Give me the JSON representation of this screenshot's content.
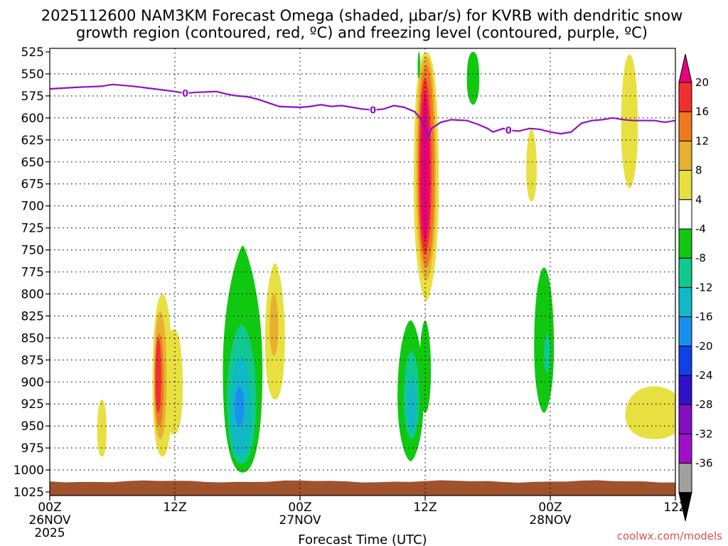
{
  "chart_data": {
    "type": "heatmap",
    "title_line1": "2025112600 NAM3KM Forecast Omega (shaded, μbar/s) for KVRB with dendritic snow",
    "title_line2": "growth region (contoured, red, ºC) and freezing level (contoured, purple, ºC)",
    "xlabel": "Forecast Time (UTC)",
    "ylabel": "",
    "credit": "coolwx.com/models",
    "x_unit": "forecast hour",
    "xlim": [
      0,
      60
    ],
    "ylim": [
      1025,
      525
    ],
    "y_ticks": [
      525,
      550,
      575,
      600,
      625,
      650,
      675,
      700,
      725,
      750,
      775,
      800,
      825,
      850,
      875,
      900,
      925,
      950,
      975,
      1000,
      1025
    ],
    "x_ticks": [
      {
        "hour": 0,
        "lines": [
          "00Z",
          "26NOV",
          "2025"
        ]
      },
      {
        "hour": 12,
        "lines": [
          "12Z"
        ]
      },
      {
        "hour": 24,
        "lines": [
          "00Z",
          "27NOV"
        ]
      },
      {
        "hour": 36,
        "lines": [
          "12Z"
        ]
      },
      {
        "hour": 48,
        "lines": [
          "00Z",
          "28NOV"
        ]
      },
      {
        "hour": 60,
        "lines": [
          "12Z"
        ]
      }
    ],
    "colorbar": {
      "labels": [
        "20",
        "16",
        "12",
        "8",
        "4",
        "-4",
        "-8",
        "-12",
        "-16",
        "-20",
        "-24",
        "-28",
        "-32",
        "-36"
      ],
      "colors": [
        "#e8007a",
        "#f03030",
        "#f07820",
        "#e8b030",
        "#e8e040",
        "#ffffff",
        "#10c810",
        "#10c890",
        "#10b8c8",
        "#1890f0",
        "#1040e8",
        "#3010c8",
        "#8010c0",
        "#a010c8",
        "#a0a0a0",
        "#000000"
      ]
    },
    "freezing_level": {
      "label": "0",
      "color": "#9010c8",
      "points": [
        [
          0,
          567
        ],
        [
          3,
          565
        ],
        [
          5,
          564
        ],
        [
          6,
          562
        ],
        [
          8,
          564
        ],
        [
          10,
          567
        ],
        [
          12,
          570
        ],
        [
          13,
          572
        ],
        [
          14,
          571
        ],
        [
          16,
          570
        ],
        [
          17,
          573
        ],
        [
          18,
          575
        ],
        [
          19,
          576
        ],
        [
          20,
          579
        ],
        [
          21,
          583
        ],
        [
          22,
          587
        ],
        [
          24,
          588
        ],
        [
          25,
          587
        ],
        [
          26,
          585
        ],
        [
          27,
          587
        ],
        [
          28,
          586
        ],
        [
          29,
          588
        ],
        [
          30,
          590
        ],
        [
          31,
          591
        ],
        [
          32,
          590
        ],
        [
          33,
          586
        ],
        [
          34,
          588
        ],
        [
          35,
          593
        ],
        [
          35.5,
          600
        ],
        [
          36,
          612
        ],
        [
          36.3,
          622
        ],
        [
          36.6,
          612
        ],
        [
          37.5,
          605
        ],
        [
          38.5,
          602
        ],
        [
          40,
          603
        ],
        [
          41,
          607
        ],
        [
          42,
          612
        ],
        [
          42.5,
          616
        ],
        [
          43.5,
          612
        ],
        [
          44,
          614
        ],
        [
          45,
          615
        ],
        [
          46,
          612
        ],
        [
          47,
          613
        ],
        [
          48,
          616
        ],
        [
          49,
          618
        ],
        [
          50,
          616
        ],
        [
          51,
          606
        ],
        [
          52,
          603
        ],
        [
          53,
          602
        ],
        [
          54,
          600
        ],
        [
          55,
          602
        ],
        [
          56,
          603
        ],
        [
          58,
          603
        ],
        [
          59,
          605
        ],
        [
          60,
          603
        ]
      ],
      "label_hours": [
        13,
        31,
        44
      ]
    },
    "omega_features": [
      {
        "name": "pos-a-0",
        "value": 4,
        "hour": 5,
        "pmin": 920,
        "pmax": 985,
        "w": 0.45,
        "wtop": 0.55,
        "wbot": 0.55
      },
      {
        "name": "pos-b-0",
        "value": 4,
        "hour": 10.8,
        "pmin": 800,
        "pmax": 985,
        "w": 0.95,
        "wtop": 0.55,
        "wbot": 0.55
      },
      {
        "name": "pos-b-1",
        "value": 4,
        "hour": 11.9,
        "pmin": 840,
        "pmax": 960,
        "w": 0.85,
        "wtop": 0.6,
        "wbot": 0.55
      },
      {
        "name": "pos-b-2",
        "value": 8,
        "hour": 10.6,
        "pmin": 820,
        "pmax": 965,
        "w": 0.6,
        "wtop": 0.55,
        "wbot": 0.55
      },
      {
        "name": "pos-b-3",
        "value": 12,
        "hour": 10.5,
        "pmin": 845,
        "pmax": 950,
        "w": 0.42,
        "wtop": 0.55,
        "wbot": 0.55
      },
      {
        "name": "pos-b-4",
        "value": 16,
        "hour": 10.4,
        "pmin": 850,
        "pmax": 935,
        "w": 0.28,
        "wtop": 0.55,
        "wbot": 0.55
      },
      {
        "name": "neg-c-0",
        "value": -4,
        "hour": 18.5,
        "pmin": 745,
        "pmax": 1003,
        "w": 1.9,
        "wtop": 0.12,
        "wbot": 0.6
      },
      {
        "name": "neg-c-1",
        "value": -8,
        "hour": 18.4,
        "pmin": 835,
        "pmax": 993,
        "w": 1.4,
        "wtop": 0.35,
        "wbot": 0.55
      },
      {
        "name": "neg-c-2",
        "value": -12,
        "hour": 18.3,
        "pmin": 870,
        "pmax": 985,
        "w": 0.95,
        "wtop": 0.45,
        "wbot": 0.55
      },
      {
        "name": "neg-c-3",
        "value": -16,
        "hour": 18.2,
        "pmin": 905,
        "pmax": 950,
        "w": 0.45,
        "wtop": 0.5,
        "wbot": 0.5
      },
      {
        "name": "pos-d-0",
        "value": 4,
        "hour": 21.6,
        "pmin": 765,
        "pmax": 920,
        "w": 0.95,
        "wtop": 0.3,
        "wbot": 0.55
      },
      {
        "name": "pos-d-1",
        "value": 8,
        "hour": 21.5,
        "pmin": 800,
        "pmax": 870,
        "w": 0.42,
        "wtop": 0.5,
        "wbot": 0.5
      },
      {
        "name": "neg-e-0",
        "value": -4,
        "hour": 34.6,
        "pmin": 830,
        "pmax": 990,
        "w": 1.25,
        "wtop": 0.35,
        "wbot": 0.3
      },
      {
        "name": "neg-e-1",
        "value": -8,
        "hour": 34.7,
        "pmin": 865,
        "pmax": 965,
        "w": 0.75,
        "wtop": 0.45,
        "wbot": 0.45
      },
      {
        "name": "neg-e-2",
        "value": -12,
        "hour": 34.7,
        "pmin": 895,
        "pmax": 955,
        "w": 0.4,
        "wtop": 0.5,
        "wbot": 0.5
      },
      {
        "name": "neg-e-3",
        "value": -4,
        "hour": 36.0,
        "pmin": 830,
        "pmax": 935,
        "w": 0.55,
        "wtop": 0.4,
        "wbot": 0.5
      },
      {
        "name": "pos-f-0",
        "value": 4,
        "hour": 36.1,
        "pmin": 525,
        "pmax": 808,
        "w": 1.2,
        "wtop": 0.7,
        "wbot": 0.3
      },
      {
        "name": "pos-f-1",
        "value": 8,
        "hour": 36.1,
        "pmin": 530,
        "pmax": 785,
        "w": 0.95,
        "wtop": 0.65,
        "wbot": 0.4
      },
      {
        "name": "pos-f-2",
        "value": 12,
        "hour": 36.1,
        "pmin": 540,
        "pmax": 770,
        "w": 0.78,
        "wtop": 0.6,
        "wbot": 0.45
      },
      {
        "name": "pos-f-3",
        "value": 16,
        "hour": 36.0,
        "pmin": 555,
        "pmax": 755,
        "w": 0.6,
        "wtop": 0.5,
        "wbot": 0.5
      },
      {
        "name": "pos-f-4",
        "value": 20,
        "hour": 36.0,
        "pmin": 570,
        "pmax": 740,
        "w": 0.42,
        "wtop": 0.35,
        "wbot": 0.5
      },
      {
        "name": "neg-g-0",
        "value": -4,
        "hour": 35.4,
        "pmin": 525,
        "pmax": 555,
        "w": 0.12,
        "wtop": 0.6,
        "wbot": 0.6
      },
      {
        "name": "neg-h-0",
        "value": -4,
        "hour": 40.6,
        "pmin": 525,
        "pmax": 585,
        "w": 0.6,
        "wtop": 0.7,
        "wbot": 0.4
      },
      {
        "name": "pos-i-0",
        "value": 4,
        "hour": 46.2,
        "pmin": 612,
        "pmax": 695,
        "w": 0.5,
        "wtop": 0.35,
        "wbot": 0.55
      },
      {
        "name": "neg-j-0",
        "value": -4,
        "hour": 47.4,
        "pmin": 770,
        "pmax": 935,
        "w": 0.95,
        "wtop": 0.45,
        "wbot": 0.35
      },
      {
        "name": "neg-j-1",
        "value": -8,
        "hour": 47.7,
        "pmin": 845,
        "pmax": 890,
        "w": 0.3,
        "wtop": 0.5,
        "wbot": 0.5
      },
      {
        "name": "pos-k-0",
        "value": 4,
        "hour": 55.6,
        "pmin": 528,
        "pmax": 680,
        "w": 0.8,
        "wtop": 0.55,
        "wbot": 0.35
      },
      {
        "name": "pos-l-0",
        "value": 4,
        "hour": 58.0,
        "pmin": 905,
        "pmax": 965,
        "w": 2.8,
        "wtop": 0.55,
        "wbot": 0.55
      }
    ],
    "terrain": {
      "color": "#a0522d",
      "pressure": 1013
    }
  }
}
